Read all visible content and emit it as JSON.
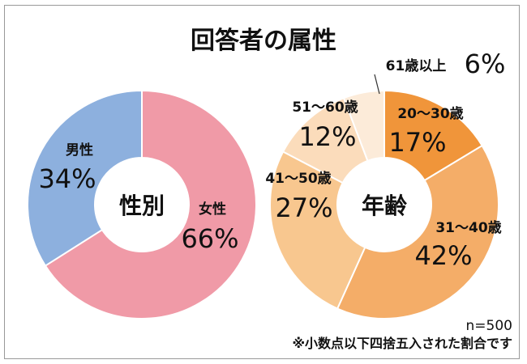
{
  "title": "回答者の属性",
  "chart_data": [
    {
      "type": "pie",
      "subtype": "donut",
      "center_label": "性別",
      "slices": [
        {
          "label": "男性",
          "value": 34,
          "display": "34%",
          "color": "#8db0de"
        },
        {
          "label": "女性",
          "value": 66,
          "display": "66%",
          "color": "#f09aa7"
        }
      ]
    },
    {
      "type": "pie",
      "subtype": "donut",
      "center_label": "年齢",
      "slices": [
        {
          "label": "20～30歳",
          "value": 17,
          "display": "17%",
          "color": "#f0953a"
        },
        {
          "label": "31～40歳",
          "value": 42,
          "display": "42%",
          "color": "#f4ad68"
        },
        {
          "label": "41～50歳",
          "value": 27,
          "display": "27%",
          "color": "#f8c78f"
        },
        {
          "label": "51～60歳",
          "value": 12,
          "display": "12%",
          "color": "#fbdcbb"
        },
        {
          "label": "61歳以上",
          "value": 6,
          "display": "6%",
          "color": "#fcebd9"
        }
      ]
    }
  ],
  "footnote": {
    "n": "n=500",
    "note": "※小数点以下四捨五入された割合です"
  }
}
